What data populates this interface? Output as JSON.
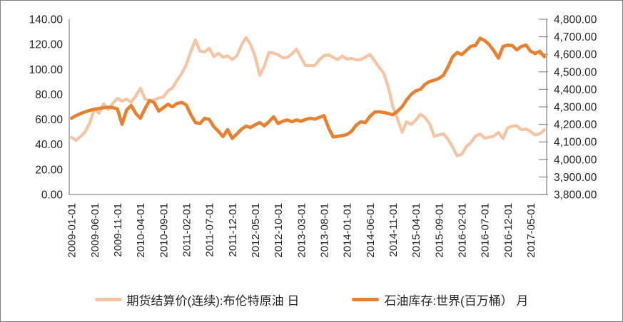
{
  "chart_data": {
    "type": "line",
    "title": "",
    "x_start": "2009-01",
    "x_end": "2017-08",
    "x_tick_labels": [
      "2009-01-01",
      "2009-06-01",
      "2009-11-01",
      "2010-04-01",
      "2010-09-01",
      "2011-02-01",
      "2011-07-01",
      "2011-12-01",
      "2012-05-01",
      "2012-10-01",
      "2013-03-01",
      "2013-08-01",
      "2014-01-01",
      "2014-06-01",
      "2014-11-01",
      "2015-04-01",
      "2015-09-01",
      "2016-02-01",
      "2016-07-01",
      "2016-12-01",
      "2017-05-01"
    ],
    "x_tick_step_months": 5,
    "left_axis": {
      "min": 0,
      "max": 140,
      "tick_labels": [
        "140.00",
        "120.00",
        "100.00",
        "80.00",
        "60.00",
        "40.00",
        "20.00",
        "0.00"
      ]
    },
    "right_axis": {
      "min": 3800,
      "max": 4800,
      "tick_labels": [
        "4,800.00",
        "4,700.00",
        "4,600.00",
        "4,500.00",
        "4,400.00",
        "4,300.00",
        "4,200.00",
        "4,100.00",
        "4,000.00",
        "3,900.00",
        "3,800.00"
      ]
    },
    "grid": false,
    "legend_position": "bottom",
    "series": [
      {
        "id": "brent-futures-price",
        "name": "期货结算价(连续):布伦特原油 日",
        "axis": "left",
        "color": "#F5C4A3",
        "stroke_width": 4.2,
        "values": [
          45.6,
          43.2,
          46.5,
          50.2,
          57.3,
          68.6,
          64.9,
          72.5,
          67.7,
          72.8,
          76.7,
          74.5,
          76.2,
          73.7,
          78.8,
          84.8,
          76.4,
          74.8,
          75.6,
          77.1,
          77.8,
          82.7,
          85.3,
          91.4,
          96.5,
          103.7,
          114.6,
          123.3,
          114.5,
          114.0,
          116.8,
          110.2,
          112.8,
          109.6,
          110.8,
          107.9,
          110.7,
          119.1,
          125.4,
          119.8,
          110.3,
          95.2,
          102.6,
          113.4,
          112.9,
          111.7,
          109.1,
          109.5,
          112.3,
          116.1,
          109.2,
          102.9,
          103.0,
          103.1,
          107.7,
          111.0,
          111.6,
          109.5,
          107.8,
          110.6,
          108.1,
          108.8,
          107.5,
          107.8,
          109.7,
          111.9,
          106.8,
          101.6,
          97.1,
          86.0,
          70.2,
          60.5,
          49.8,
          58.1,
          55.9,
          59.5,
          64.1,
          61.5,
          56.6,
          46.5,
          47.6,
          48.4,
          44.3,
          38.0,
          30.8,
          32.2,
          38.2,
          41.6,
          46.7,
          48.3,
          44.9,
          45.8,
          46.6,
          49.5,
          44.7,
          53.3,
          54.6,
          54.9,
          51.6,
          52.3,
          50.3,
          47.6,
          48.5,
          51.7
        ]
      },
      {
        "id": "world-oil-inventory",
        "name": "石油库存:世界(百万桶） 月",
        "axis": "right",
        "color": "#E8802F",
        "stroke_width": 4.6,
        "values": [
          4235,
          4250,
          4262,
          4272,
          4280,
          4286,
          4291,
          4295,
          4298,
          4295,
          4288,
          4200,
          4282,
          4308,
          4262,
          4235,
          4290,
          4336,
          4324,
          4276,
          4295,
          4315,
          4300,
          4320,
          4325,
          4310,
          4255,
          4210,
          4205,
          4235,
          4228,
          4187,
          4160,
          4130,
          4170,
          4120,
          4145,
          4172,
          4190,
          4182,
          4198,
          4210,
          4192,
          4215,
          4243,
          4205,
          4218,
          4225,
          4215,
          4225,
          4218,
          4228,
          4235,
          4230,
          4240,
          4250,
          4180,
          4128,
          4132,
          4136,
          4142,
          4160,
          4195,
          4215,
          4210,
          4245,
          4270,
          4272,
          4268,
          4262,
          4255,
          4275,
          4300,
          4340,
          4372,
          4392,
          4400,
          4428,
          4445,
          4452,
          4462,
          4480,
          4528,
          4585,
          4610,
          4598,
          4622,
          4646,
          4650,
          4692,
          4678,
          4655,
          4620,
          4578,
          4645,
          4652,
          4650,
          4625,
          4645,
          4652,
          4617,
          4604,
          4617,
          4586
        ]
      }
    ]
  },
  "colors": {
    "axis_line": "#8c8c8c",
    "text": "#262626",
    "frame_border": "#7f7f7f",
    "background": "#ffffff"
  }
}
